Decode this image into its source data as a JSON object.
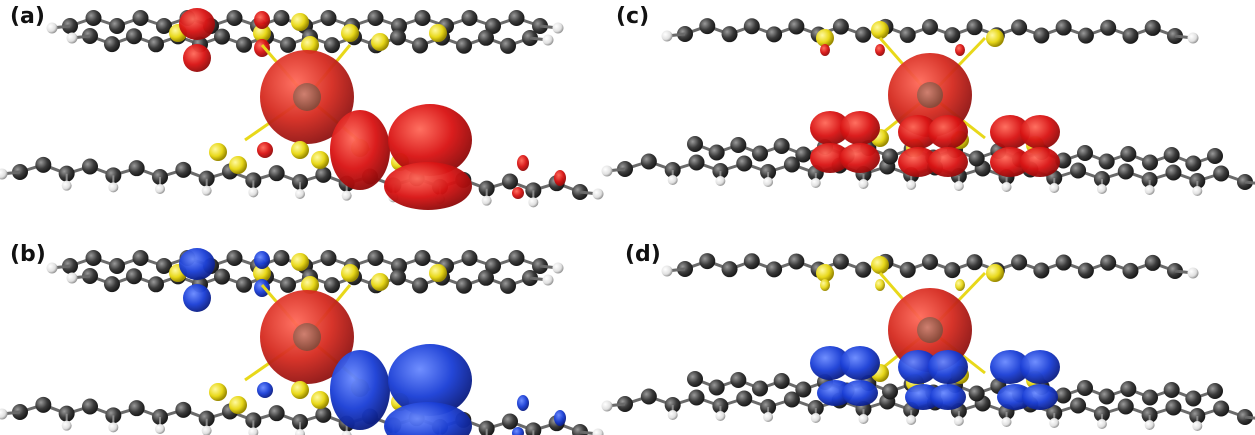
{
  "panels": [
    {
      "label": "(a)",
      "density_color": "#d91414",
      "shows_ligand_density": true
    },
    {
      "label": "(b)",
      "density_color": "#1b3fd6",
      "shows_ligand_density": true
    },
    {
      "label": "(c)",
      "density_color": "#d91414",
      "shows_ligand_density": true
    },
    {
      "label": "(d)",
      "density_color": "#1b3fd6",
      "shows_ligand_density": true
    }
  ],
  "colors": {
    "carbon": "#3a3a3a",
    "hydrogen": "#e8e8e8",
    "sulfur": "#e8d81a",
    "metal_core": "#b06050",
    "metal_sphere": "#d52a1f",
    "positive_density": "#d91414",
    "negative_density": "#1b3fd6"
  }
}
